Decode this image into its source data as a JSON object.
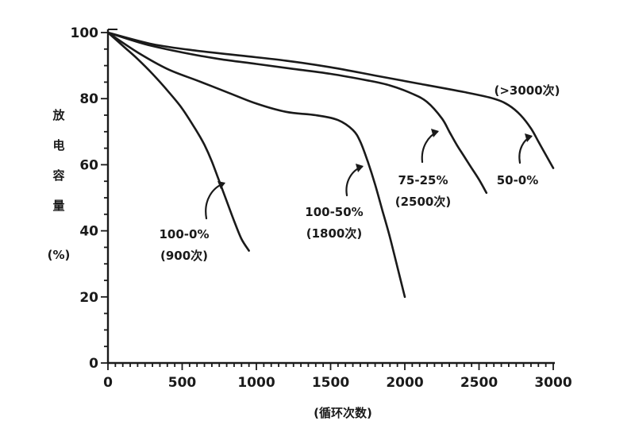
{
  "chart_data": {
    "type": "line",
    "xlabel": "(循环次数)",
    "ylabel_chars": [
      "放",
      "电",
      "容",
      "量",
      "(%)"
    ],
    "xlim": [
      0,
      3000
    ],
    "ylim": [
      0,
      100
    ],
    "x_ticks": [
      "0",
      "500",
      "1000",
      "1500",
      "2000",
      "2500",
      "3000"
    ],
    "y_ticks": [
      "0",
      "20",
      "40",
      "60",
      "80",
      "100"
    ],
    "grid": false,
    "series": [
      {
        "name": "100-0%",
        "annotation": [
          "100-0%",
          "(900次)"
        ],
        "x": [
          0,
          100,
          200,
          300,
          400,
          500,
          600,
          650,
          700,
          750,
          800,
          850,
          900,
          950
        ],
        "y": [
          100,
          96,
          92,
          87.5,
          82.5,
          77,
          70,
          66,
          61,
          55,
          49,
          43,
          37.5,
          34
        ]
      },
      {
        "name": "100-50%",
        "annotation": [
          "100-50%",
          "(1800次)"
        ],
        "x": [
          0,
          200,
          400,
          600,
          800,
          1000,
          1200,
          1400,
          1550,
          1650,
          1700,
          1750,
          1800,
          1850,
          1900,
          1950,
          2000
        ],
        "y": [
          100,
          94,
          89,
          85.5,
          82,
          78.5,
          76,
          75,
          73.5,
          70.5,
          67,
          61,
          54,
          46,
          38,
          29,
          20
        ]
      },
      {
        "name": "75-25%",
        "annotation": [
          "75-25%",
          "(2500次)"
        ],
        "x": [
          0,
          250,
          500,
          750,
          1000,
          1250,
          1500,
          1750,
          1900,
          2050,
          2150,
          2250,
          2300,
          2350,
          2400,
          2450,
          2500,
          2550
        ],
        "y": [
          100,
          96.5,
          94,
          92,
          90.5,
          89,
          87.5,
          85.5,
          84,
          81.5,
          79,
          74,
          70,
          66,
          62.5,
          59,
          55.5,
          51.5
        ]
      },
      {
        "name": "50-0%",
        "annotation": [
          "50-0%",
          "(>3000次)"
        ],
        "x": [
          0,
          300,
          600,
          900,
          1200,
          1500,
          1800,
          2100,
          2400,
          2600,
          2700,
          2780,
          2850,
          2900,
          2950,
          3000
        ],
        "y": [
          100,
          96.5,
          94.5,
          93,
          91.5,
          89.5,
          87,
          84.5,
          82,
          80,
          78,
          75,
          71,
          67,
          63,
          59
        ]
      }
    ]
  }
}
